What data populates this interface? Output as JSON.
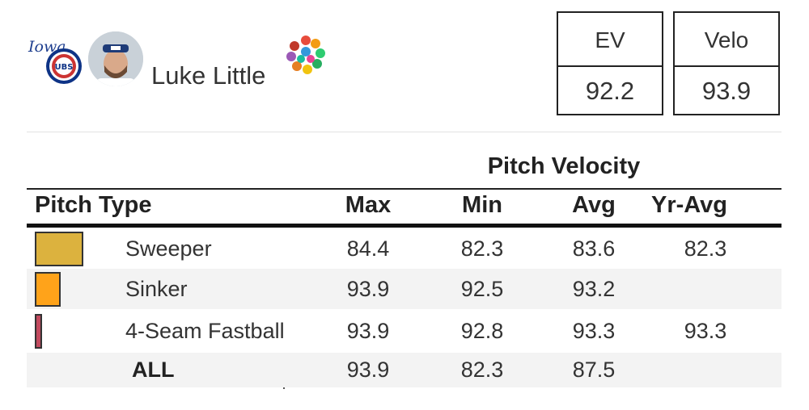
{
  "header": {
    "team_logo_icon": "iowa-cubs-logo",
    "headshot_icon": "player-headshot",
    "player_name": "Luke Little",
    "pitch_mix_icon": "pitch-mix-icon",
    "stats": [
      {
        "label": "EV",
        "value": "92.2"
      },
      {
        "label": "Velo",
        "value": "93.9"
      }
    ]
  },
  "table": {
    "group_header": "Pitch Velocity",
    "columns": {
      "pitch_type": "Pitch Type",
      "max": "Max",
      "min": "Min",
      "avg": "Avg",
      "yr_avg": "Yr-Avg"
    },
    "rows": [
      {
        "pitch": "Sweeper",
        "color": "#dcb23e",
        "usage_fraction": 1.0,
        "max": "84.4",
        "min": "82.3",
        "avg": "83.6",
        "yr_avg": "82.3"
      },
      {
        "pitch": "Sinker",
        "color": "#ffa31a",
        "usage_fraction": 0.54,
        "max": "93.9",
        "min": "92.5",
        "avg": "93.2",
        "yr_avg": ""
      },
      {
        "pitch": "4-Seam Fastball",
        "color": "#c24a5e",
        "usage_fraction": 0.15,
        "max": "93.9",
        "min": "92.8",
        "avg": "93.3",
        "yr_avg": "93.3"
      }
    ],
    "total": {
      "label": "ALL",
      "max": "93.9",
      "min": "82.3",
      "avg": "87.5",
      "yr_avg": ""
    }
  }
}
